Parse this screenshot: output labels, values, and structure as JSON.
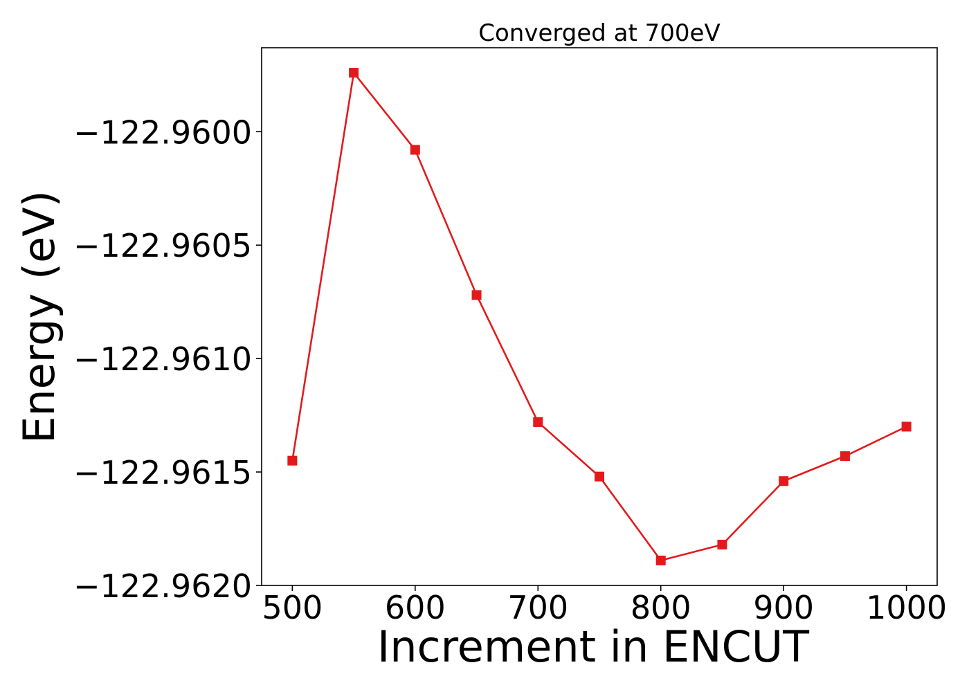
{
  "chart_data": {
    "type": "line",
    "title": "Converged at 700eV",
    "xlabel": "Increment in ENCUT",
    "ylabel": "Energy (eV)",
    "x": [
      500,
      550,
      600,
      650,
      700,
      750,
      800,
      850,
      900,
      950,
      1000
    ],
    "series": [
      {
        "values": [
          -122.96145,
          -122.95974,
          -122.96008,
          -122.96072,
          -122.96128,
          -122.96152,
          -122.96189,
          -122.96182,
          -122.96154,
          -122.96143,
          -122.9613
        ],
        "color": "#e31a1c",
        "marker": "square"
      }
    ],
    "xticks": [
      500,
      600,
      700,
      800,
      900,
      1000
    ],
    "xtick_labels": [
      "500",
      "600",
      "700",
      "800",
      "900",
      "1000"
    ],
    "yticks": [
      -122.96,
      -122.9605,
      -122.961,
      -122.9615,
      -122.962
    ],
    "ytick_labels": [
      "−122.9600",
      "−122.9605",
      "−122.9610",
      "−122.9615",
      "−122.9620"
    ],
    "xlim": [
      475,
      1025
    ],
    "ylim": [
      -122.962,
      -122.95963
    ],
    "grid": false,
    "legend": false
  }
}
